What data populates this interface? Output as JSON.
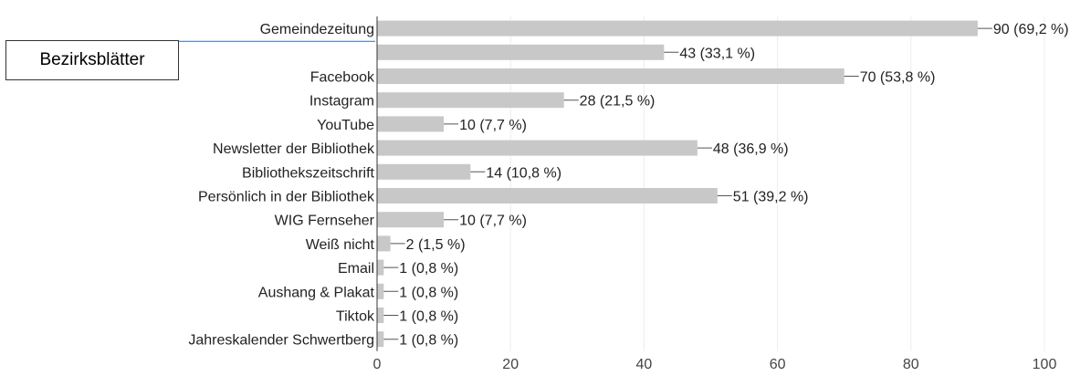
{
  "callout": {
    "label": "Bezirksblätter",
    "line_color": "#4a7ebb"
  },
  "chart_data": {
    "type": "bar",
    "orientation": "horizontal",
    "title": "",
    "xlabel": "",
    "ylabel": "",
    "xlim": [
      0,
      100
    ],
    "x_ticks": [
      "0",
      "20",
      "40",
      "60",
      "80",
      "100"
    ],
    "grid": true,
    "bar_color": "#c8c8c8",
    "categories": [
      "Gemeindezeitung",
      "",
      "Facebook",
      "Instagram",
      "YouTube",
      "Newsletter der Bibliothek",
      "Bibliothekszeitschrift",
      "Persönlich in der Bibliothek",
      "WIG Fernseher",
      "Weiß nicht",
      "Email",
      "Aushang & Plakat",
      "Tiktok",
      "Jahreskalender Schwertberg"
    ],
    "values": [
      90,
      43,
      70,
      28,
      10,
      48,
      14,
      51,
      10,
      2,
      1,
      1,
      1,
      1
    ],
    "value_labels": [
      "90 (69,2 %)",
      "43 (33,1 %)",
      "70 (53,8 %)",
      "28 (21,5 %)",
      "10 (7,7 %)",
      "48 (36,9 %)",
      "14 (10,8 %)",
      "51 (39,2 %)",
      "10 (7,7 %)",
      "2 (1,5 %)",
      "1 (0,8 %)",
      "1 (0,8 %)",
      "1 (0,8 %)",
      "1 (0,8 %)"
    ]
  }
}
